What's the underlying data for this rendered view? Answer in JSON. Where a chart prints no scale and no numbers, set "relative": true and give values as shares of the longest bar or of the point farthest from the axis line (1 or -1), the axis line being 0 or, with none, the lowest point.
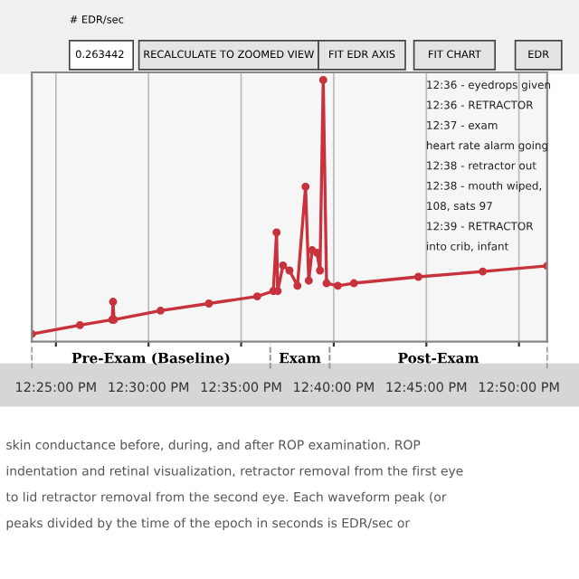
{
  "chart_data": {
    "type": "line",
    "relative": true,
    "x": [
      12.395,
      12.4383,
      12.4673,
      12.4681,
      12.4689,
      12.5108,
      12.5543,
      12.5978,
      12.6123,
      12.6152,
      12.6162,
      12.621,
      12.6268,
      12.634,
      12.6413,
      12.6442,
      12.6472,
      12.6515,
      12.6543,
      12.6572,
      12.6602,
      12.6703,
      12.6848,
      12.7428,
      12.8007,
      12.8587
    ],
    "series": [
      {
        "color": "#c8323c",
        "values": [
          0,
          0.035,
          0.056,
          0.127,
          0.056,
          0.092,
          0.12,
          0.148,
          0.169,
          0.4,
          0.169,
          0.27,
          0.25,
          0.19,
          0.58,
          0.21,
          0.33,
          0.32,
          0.25,
          1.0,
          0.2,
          0.19,
          0.2,
          0.225,
          0.246,
          0.268
        ]
      }
    ],
    "xlim": [
      12.395,
      12.8587
    ],
    "xticks": [
      {
        "value": 12.41667,
        "label": "12:25:00 PM"
      },
      {
        "value": 12.5,
        "label": "12:30:00 PM"
      },
      {
        "value": 12.58333,
        "label": "12:35:00 PM"
      },
      {
        "value": 12.66667,
        "label": "12:40:00 PM"
      },
      {
        "value": 12.75,
        "label": "12:45:00 PM"
      },
      {
        "value": 12.83333,
        "label": "12:50:00 PM"
      }
    ],
    "grid": "x",
    "marker": "circle",
    "line_style": "solid",
    "bands": [
      {
        "axis": "x",
        "from": 12.395,
        "to": 12.6095,
        "label": "Pre-Exam (Baseline)"
      },
      {
        "axis": "x",
        "from": 12.6095,
        "to": 12.663,
        "label": "Exam"
      },
      {
        "axis": "x",
        "from": 12.663,
        "to": 12.8587,
        "label": "Post-Exam"
      }
    ],
    "annotations": [
      "# EDR/sec",
      "0.263442",
      "RECALCULATE TO ZOOMED VIEW",
      "FIT EDR AXIS",
      "FIT CHART",
      "EDR",
      "12:36 - eyedrops given",
      "12:36 - RETRACTOR",
      "12:37 - exam",
      "heart rate alarm going",
      "12:38 - retractor out",
      "12:38 - mouth wiped,",
      "108, sats 97",
      "12:39 - RETRACTOR",
      "into crib, infant",
      "skin conductance before, during, and after ROP examination. ROP",
      "indentation and retinal visualization, retractor removal from the first eye",
      "to lid retractor removal from the second eye. Each waveform peak (or",
      "peaks divided by the time of the epoch in seconds is EDR/sec or"
    ]
  }
}
